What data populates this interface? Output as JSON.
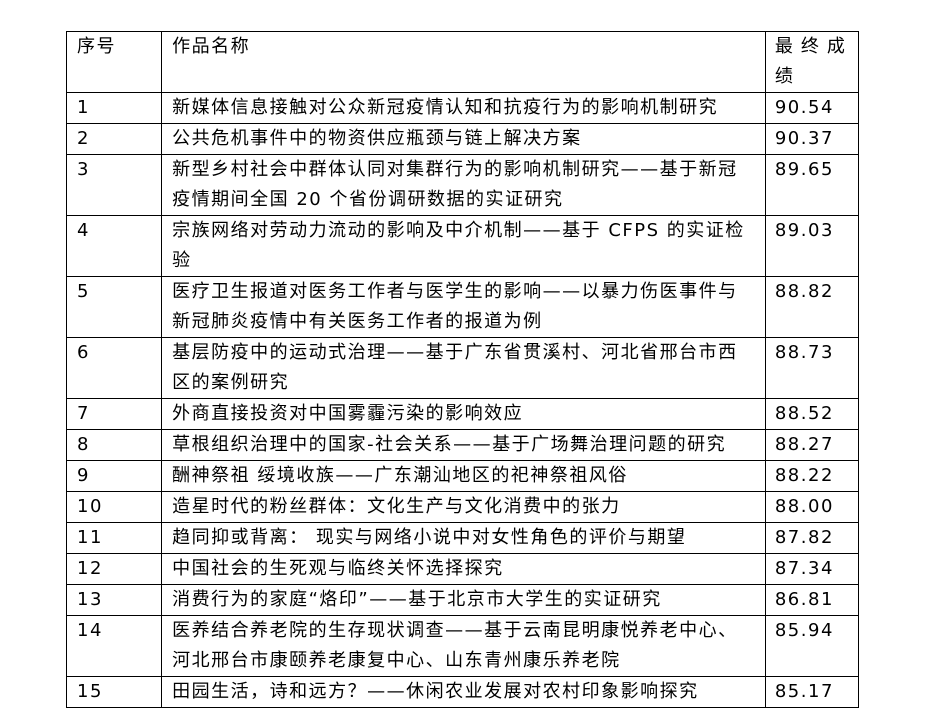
{
  "header": {
    "index": "序号",
    "title": "作品名称",
    "score": "最终成绩"
  },
  "rows": [
    {
      "index": "1",
      "title": "新媒体信息接触对公众新冠疫情认知和抗疫行为的影响机制研究",
      "score": "90.54"
    },
    {
      "index": "2",
      "title": "公共危机事件中的物资供应瓶颈与链上解决方案",
      "score": "90.37"
    },
    {
      "index": "3",
      "title": "新型乡村社会中群体认同对集群行为的影响机制研究——基于新冠\n疫情期间全国 20 个省份调研数据的实证研究",
      "score": "89.65"
    },
    {
      "index": "4",
      "title": "宗族网络对劳动力流动的影响及中介机制——基于 CFPS 的实证检\n验",
      "score": "89.03"
    },
    {
      "index": "5",
      "title": "医疗卫生报道对医务工作者与医学生的影响——以暴力伤医事件与\n新冠肺炎疫情中有关医务工作者的报道为例",
      "score": "88.82"
    },
    {
      "index": "6",
      "title": "基层防疫中的运动式治理——基于广东省贯溪村、河北省邢台市西\n区的案例研究",
      "score": "88.73"
    },
    {
      "index": "7",
      "title": "外商直接投资对中国雾霾污染的影响效应",
      "score": "88.52"
    },
    {
      "index": "8",
      "title": "草根组织治理中的国家-社会关系——基于广场舞治理问题的研究",
      "score": "88.27"
    },
    {
      "index": "9",
      "title": "酬神祭祖 绥境收族——广东潮汕地区的祀神祭祖风俗",
      "score": "88.22"
    },
    {
      "index": "10",
      "title": "造星时代的粉丝群体：文化生产与文化消费中的张力",
      "score": "88.00"
    },
    {
      "index": "11",
      "title": "趋同抑或背离： 现实与网络小说中对女性角色的评价与期望",
      "score": "87.82"
    },
    {
      "index": "12",
      "title": "中国社会的生死观与临终关怀选择探究",
      "score": "87.34"
    },
    {
      "index": "13",
      "title": "消费行为的家庭“烙印”——基于北京市大学生的实证研究",
      "score": "86.81"
    },
    {
      "index": "14",
      "title": "医养结合养老院的生存现状调查——基于云南昆明康悦养老中心、\n河北邢台市康颐养老康复中心、山东青州康乐养老院",
      "score": "85.94"
    },
    {
      "index": "15",
      "title": "田园生活，诗和远方？——休闲农业发展对农村印象影响探究",
      "score": "85.17"
    }
  ]
}
